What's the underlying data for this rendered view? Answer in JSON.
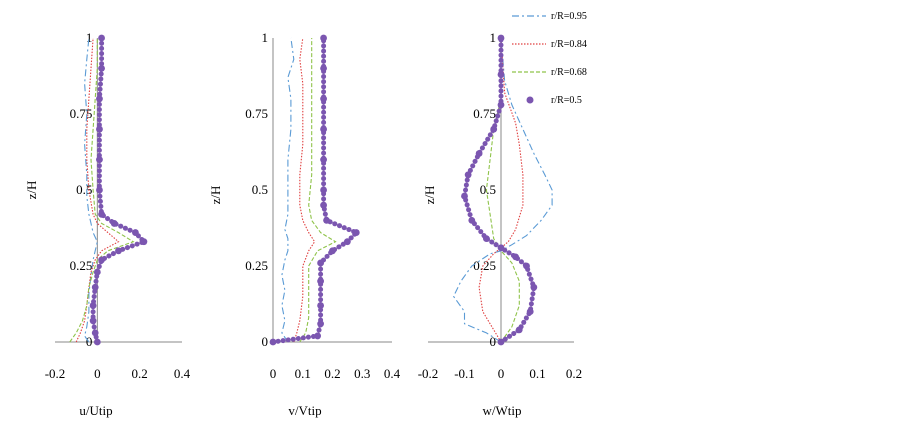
{
  "chart_data": [
    {
      "type": "line",
      "xlabel": "u/Utip",
      "ylabel": "z/H",
      "xlim": [
        -0.2,
        0.4
      ],
      "ylim": [
        0,
        1
      ],
      "xticks": [
        "-0.2",
        "0",
        "0.2",
        "0.4"
      ],
      "yticks": [
        "0",
        "0.25",
        "0.5",
        "0.75",
        "1"
      ],
      "series": [
        {
          "name": "r/R=0.95",
          "points": [
            [
              -0.04,
              0.0
            ],
            [
              -0.06,
              0.02
            ],
            [
              -0.05,
              0.05
            ],
            [
              -0.04,
              0.1
            ],
            [
              -0.04,
              0.16
            ],
            [
              -0.03,
              0.22
            ],
            [
              -0.02,
              0.27
            ],
            [
              -0.01,
              0.3
            ],
            [
              0.0,
              0.33
            ],
            [
              -0.02,
              0.36
            ],
            [
              -0.03,
              0.39
            ],
            [
              -0.04,
              0.42
            ],
            [
              -0.05,
              0.48
            ],
            [
              -0.05,
              0.55
            ],
            [
              -0.06,
              0.65
            ],
            [
              -0.05,
              0.75
            ],
            [
              -0.06,
              0.85
            ],
            [
              -0.05,
              0.93
            ],
            [
              -0.04,
              1.0
            ]
          ]
        },
        {
          "name": "r/R=0.84",
          "points": [
            [
              -0.1,
              0.0
            ],
            [
              -0.08,
              0.03
            ],
            [
              -0.06,
              0.07
            ],
            [
              -0.05,
              0.12
            ],
            [
              -0.04,
              0.18
            ],
            [
              -0.03,
              0.23
            ],
            [
              -0.01,
              0.27
            ],
            [
              0.02,
              0.3
            ],
            [
              0.1,
              0.33
            ],
            [
              0.05,
              0.36
            ],
            [
              0.0,
              0.39
            ],
            [
              -0.02,
              0.42
            ],
            [
              -0.04,
              0.5
            ],
            [
              -0.05,
              0.6
            ],
            [
              -0.05,
              0.7
            ],
            [
              -0.04,
              0.8
            ],
            [
              -0.03,
              0.9
            ],
            [
              -0.02,
              1.0
            ]
          ]
        },
        {
          "name": "r/R=0.68",
          "points": [
            [
              -0.13,
              0.0
            ],
            [
              -0.1,
              0.03
            ],
            [
              -0.07,
              0.07
            ],
            [
              -0.05,
              0.12
            ],
            [
              -0.04,
              0.18
            ],
            [
              -0.02,
              0.23
            ],
            [
              0.0,
              0.27
            ],
            [
              0.05,
              0.3
            ],
            [
              0.17,
              0.33
            ],
            [
              0.1,
              0.36
            ],
            [
              0.02,
              0.39
            ],
            [
              -0.01,
              0.42
            ],
            [
              -0.02,
              0.5
            ],
            [
              -0.03,
              0.6
            ],
            [
              -0.02,
              0.7
            ],
            [
              -0.01,
              0.8
            ],
            [
              0.0,
              0.9
            ],
            [
              0.0,
              1.0
            ]
          ]
        },
        {
          "name": "r/R=0.5",
          "points": [
            [
              0.0,
              0.0
            ],
            [
              -0.01,
              0.03
            ],
            [
              -0.02,
              0.07
            ],
            [
              -0.02,
              0.12
            ],
            [
              -0.01,
              0.18
            ],
            [
              0.0,
              0.23
            ],
            [
              0.02,
              0.27
            ],
            [
              0.1,
              0.3
            ],
            [
              0.22,
              0.33
            ],
            [
              0.18,
              0.36
            ],
            [
              0.08,
              0.39
            ],
            [
              0.02,
              0.42
            ],
            [
              0.01,
              0.5
            ],
            [
              0.01,
              0.6
            ],
            [
              0.01,
              0.7
            ],
            [
              0.01,
              0.8
            ],
            [
              0.02,
              0.9
            ],
            [
              0.02,
              1.0
            ]
          ]
        }
      ]
    },
    {
      "type": "line",
      "xlabel": "v/Vtip",
      "ylabel": "z/H",
      "xlim": [
        0,
        0.4
      ],
      "ylim": [
        0,
        1
      ],
      "xticks": [
        "0",
        "0.1",
        "0.2",
        "0.3",
        "0.4"
      ],
      "yticks": [
        "0",
        "0.25",
        "0.5",
        "0.75",
        "1"
      ],
      "series": [
        {
          "name": "r/R=0.95",
          "points": [
            [
              0.05,
              0.0
            ],
            [
              0.03,
              0.03
            ],
            [
              0.04,
              0.07
            ],
            [
              0.03,
              0.12
            ],
            [
              0.04,
              0.17
            ],
            [
              0.03,
              0.22
            ],
            [
              0.04,
              0.27
            ],
            [
              0.05,
              0.3
            ],
            [
              0.05,
              0.34
            ],
            [
              0.04,
              0.37
            ],
            [
              0.05,
              0.42
            ],
            [
              0.05,
              0.5
            ],
            [
              0.05,
              0.6
            ],
            [
              0.06,
              0.7
            ],
            [
              0.06,
              0.8
            ],
            [
              0.05,
              0.87
            ],
            [
              0.07,
              0.93
            ],
            [
              0.06,
              1.0
            ]
          ]
        },
        {
          "name": "r/R=0.84",
          "points": [
            [
              0.07,
              0.0
            ],
            [
              0.08,
              0.03
            ],
            [
              0.09,
              0.07
            ],
            [
              0.1,
              0.15
            ],
            [
              0.1,
              0.25
            ],
            [
              0.12,
              0.3
            ],
            [
              0.14,
              0.33
            ],
            [
              0.12,
              0.36
            ],
            [
              0.1,
              0.4
            ],
            [
              0.09,
              0.45
            ],
            [
              0.09,
              0.55
            ],
            [
              0.1,
              0.65
            ],
            [
              0.1,
              0.75
            ],
            [
              0.1,
              0.85
            ],
            [
              0.09,
              0.93
            ],
            [
              0.1,
              1.0
            ]
          ]
        },
        {
          "name": "r/R=0.68",
          "points": [
            [
              0.09,
              0.0
            ],
            [
              0.11,
              0.03
            ],
            [
              0.12,
              0.08
            ],
            [
              0.12,
              0.18
            ],
            [
              0.12,
              0.25
            ],
            [
              0.15,
              0.3
            ],
            [
              0.21,
              0.33
            ],
            [
              0.16,
              0.36
            ],
            [
              0.13,
              0.4
            ],
            [
              0.12,
              0.45
            ],
            [
              0.13,
              0.55
            ],
            [
              0.13,
              0.65
            ],
            [
              0.13,
              0.75
            ],
            [
              0.13,
              0.85
            ],
            [
              0.13,
              0.93
            ],
            [
              0.13,
              1.0
            ]
          ]
        },
        {
          "name": "r/R=0.5",
          "points": [
            [
              0.0,
              0.0
            ],
            [
              0.15,
              0.02
            ],
            [
              0.16,
              0.06
            ],
            [
              0.16,
              0.12
            ],
            [
              0.16,
              0.2
            ],
            [
              0.16,
              0.26
            ],
            [
              0.2,
              0.3
            ],
            [
              0.25,
              0.33
            ],
            [
              0.28,
              0.36
            ],
            [
              0.18,
              0.4
            ],
            [
              0.17,
              0.45
            ],
            [
              0.17,
              0.5
            ],
            [
              0.17,
              0.6
            ],
            [
              0.17,
              0.7
            ],
            [
              0.17,
              0.8
            ],
            [
              0.17,
              0.9
            ],
            [
              0.17,
              1.0
            ]
          ]
        }
      ]
    },
    {
      "type": "line",
      "xlabel": "w/Wtip",
      "ylabel": "z/H",
      "xlim": [
        -0.2,
        0.2
      ],
      "ylim": [
        0,
        1
      ],
      "xticks": [
        "-0.2",
        "-0.1",
        "0",
        "0.1",
        "0.2"
      ],
      "yticks": [
        "0",
        "0.25",
        "0.5",
        "0.75",
        "1"
      ],
      "legend_position": "top-right",
      "series": [
        {
          "name": "r/R=0.95",
          "points": [
            [
              0.0,
              0.0
            ],
            [
              -0.04,
              0.03
            ],
            [
              -0.1,
              0.06
            ],
            [
              -0.1,
              0.1
            ],
            [
              -0.13,
              0.15
            ],
            [
              -0.11,
              0.2
            ],
            [
              -0.08,
              0.25
            ],
            [
              -0.03,
              0.29
            ],
            [
              0.0,
              0.3
            ],
            [
              0.03,
              0.32
            ],
            [
              0.07,
              0.35
            ],
            [
              0.11,
              0.4
            ],
            [
              0.14,
              0.45
            ],
            [
              0.14,
              0.5
            ],
            [
              0.12,
              0.55
            ],
            [
              0.09,
              0.62
            ],
            [
              0.06,
              0.7
            ],
            [
              0.03,
              0.78
            ],
            [
              0.01,
              0.86
            ],
            [
              0.0,
              1.0
            ]
          ]
        },
        {
          "name": "r/R=0.84",
          "points": [
            [
              0.0,
              0.0
            ],
            [
              -0.02,
              0.04
            ],
            [
              -0.05,
              0.1
            ],
            [
              -0.06,
              0.18
            ],
            [
              -0.05,
              0.25
            ],
            [
              -0.02,
              0.29
            ],
            [
              0.0,
              0.31
            ],
            [
              0.02,
              0.33
            ],
            [
              0.04,
              0.37
            ],
            [
              0.06,
              0.45
            ],
            [
              0.06,
              0.55
            ],
            [
              0.05,
              0.65
            ],
            [
              0.04,
              0.72
            ],
            [
              0.01,
              0.82
            ],
            [
              0.0,
              1.0
            ]
          ]
        },
        {
          "name": "r/R=0.68",
          "points": [
            [
              0.0,
              0.0
            ],
            [
              0.03,
              0.05
            ],
            [
              0.05,
              0.12
            ],
            [
              0.05,
              0.2
            ],
            [
              0.03,
              0.26
            ],
            [
              0.0,
              0.3
            ],
            [
              -0.02,
              0.34
            ],
            [
              -0.03,
              0.42
            ],
            [
              -0.04,
              0.5
            ],
            [
              -0.03,
              0.6
            ],
            [
              -0.02,
              0.7
            ],
            [
              0.0,
              0.8
            ],
            [
              0.0,
              1.0
            ]
          ]
        },
        {
          "name": "r/R=0.5",
          "points": [
            [
              0.0,
              0.0
            ],
            [
              0.05,
              0.04
            ],
            [
              0.08,
              0.1
            ],
            [
              0.09,
              0.18
            ],
            [
              0.07,
              0.25
            ],
            [
              0.04,
              0.28
            ],
            [
              0.0,
              0.31
            ],
            [
              -0.04,
              0.34
            ],
            [
              -0.08,
              0.4
            ],
            [
              -0.1,
              0.48
            ],
            [
              -0.09,
              0.55
            ],
            [
              -0.06,
              0.62
            ],
            [
              -0.02,
              0.7
            ],
            [
              0.0,
              0.78
            ],
            [
              0.0,
              0.88
            ],
            [
              0.0,
              1.0
            ]
          ]
        }
      ]
    }
  ],
  "legend": [
    {
      "label": "r/R=0.95",
      "color": "#5b9bd5",
      "style": "dashdot"
    },
    {
      "label": "r/R=0.84",
      "color": "#e04040",
      "style": "dotted"
    },
    {
      "label": "r/R=0.68",
      "color": "#8fc34a",
      "style": "dashed"
    },
    {
      "label": "r/R=0.5",
      "color": "#7b56b0",
      "style": "marker"
    }
  ],
  "colors": {
    "r/R=0.95": "#5b9bd5",
    "r/R=0.84": "#e04040",
    "r/R=0.68": "#8fc34a",
    "r/R=0.5": "#7b56b0",
    "axis": "#8a8a8a"
  }
}
